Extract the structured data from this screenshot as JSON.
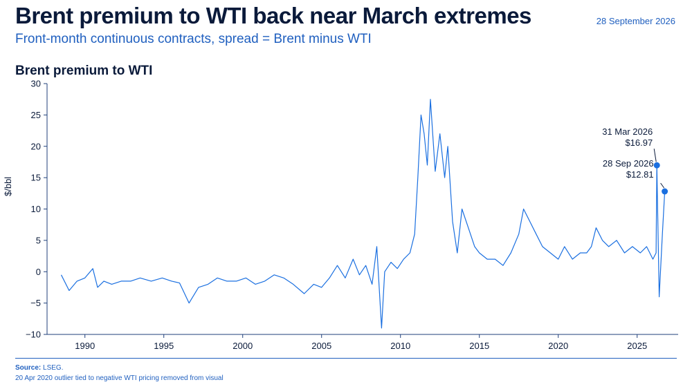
{
  "header": {
    "headline": "Brent premium to WTI back near March extremes",
    "date": "28 September 2026",
    "subtitle": "Front-month continuous contracts, spread = Brent minus WTI"
  },
  "footer": {
    "source_label": "Source:",
    "source_text": "LSEG.",
    "note": "20 Apr 2020 outlier tied to negative WTI pricing removed from visual"
  },
  "colors": {
    "series": "#1a6fe0",
    "axis": "#1f3f7a",
    "text": "#0a1a3a",
    "accent": "#1f5fbf"
  },
  "chart_data": {
    "type": "line",
    "title": "Brent premium to WTI",
    "ylabel": "$/bbl",
    "xlabel": "",
    "xlim": [
      1987.6,
      2027.6
    ],
    "ylim": [
      -10,
      30
    ],
    "xticks": [
      "1990",
      "1995",
      "2000",
      "2005",
      "2010",
      "2015",
      "2020",
      "2025"
    ],
    "yticks": [
      "30",
      "25",
      "20",
      "15",
      "10",
      "5",
      "0",
      "−5",
      "−10"
    ],
    "grid": false,
    "series": [
      {
        "name": "Brent premium to WTI",
        "x": [
          1988.5,
          1989.0,
          1989.5,
          1990.0,
          1990.5,
          1990.8,
          1991.2,
          1991.7,
          1992.3,
          1992.9,
          1993.5,
          1994.2,
          1994.9,
          1995.5,
          1996.0,
          1996.6,
          1997.2,
          1997.8,
          1998.4,
          1999.0,
          1999.6,
          2000.2,
          2000.8,
          2001.4,
          2002.0,
          2002.6,
          2003.2,
          2003.9,
          2004.5,
          2005.0,
          2005.5,
          2006.0,
          2006.5,
          2007.0,
          2007.4,
          2007.8,
          2008.2,
          2008.5,
          2008.8,
          2009.0,
          2009.4,
          2009.8,
          2010.2,
          2010.6,
          2010.9,
          2011.1,
          2011.3,
          2011.5,
          2011.7,
          2011.9,
          2012.2,
          2012.5,
          2012.8,
          2013.0,
          2013.3,
          2013.6,
          2013.9,
          2014.3,
          2014.7,
          2015.0,
          2015.5,
          2016.0,
          2016.5,
          2017.0,
          2017.5,
          2017.8,
          2018.2,
          2018.6,
          2019.0,
          2019.5,
          2020.0,
          2020.4,
          2020.9,
          2021.4,
          2021.8,
          2022.1,
          2022.4,
          2022.8,
          2023.2,
          2023.7,
          2024.2,
          2024.7,
          2025.2,
          2025.6,
          2026.0,
          2026.2,
          2026.25,
          2026.4,
          2026.6,
          2026.75
        ],
        "y": [
          -0.5,
          -3.0,
          -1.5,
          -1.0,
          0.5,
          -2.5,
          -1.5,
          -2.0,
          -1.5,
          -1.5,
          -1.0,
          -1.5,
          -1.0,
          -1.5,
          -1.8,
          -5.0,
          -2.5,
          -2.0,
          -1.0,
          -1.5,
          -1.5,
          -1.0,
          -2.0,
          -1.5,
          -0.5,
          -1.0,
          -2.0,
          -3.5,
          -2.0,
          -2.5,
          -1.0,
          1.0,
          -1.0,
          2.0,
          -0.5,
          1.0,
          -2.0,
          4.0,
          -9.0,
          0.0,
          1.5,
          0.5,
          2.0,
          3.0,
          6.0,
          15.0,
          25.0,
          22.0,
          17.0,
          27.5,
          16.0,
          22.0,
          15.0,
          20.0,
          8.0,
          3.0,
          10.0,
          7.0,
          4.0,
          3.0,
          2.0,
          2.0,
          1.0,
          3.0,
          6.0,
          10.0,
          8.0,
          6.0,
          4.0,
          3.0,
          2.0,
          4.0,
          2.0,
          3.0,
          3.0,
          4.0,
          7.0,
          5.0,
          4.0,
          5.0,
          3.0,
          4.0,
          3.0,
          4.0,
          2.0,
          3.0,
          16.97,
          -4.0,
          6.0,
          12.81
        ]
      }
    ],
    "annotations": [
      {
        "label_date": "31 Mar 2026",
        "label_value": "$16.97",
        "x": 2026.25,
        "y": 16.97
      },
      {
        "label_date": "28 Sep 2026",
        "label_value": "$12.81",
        "x": 2026.75,
        "y": 12.81
      }
    ]
  }
}
